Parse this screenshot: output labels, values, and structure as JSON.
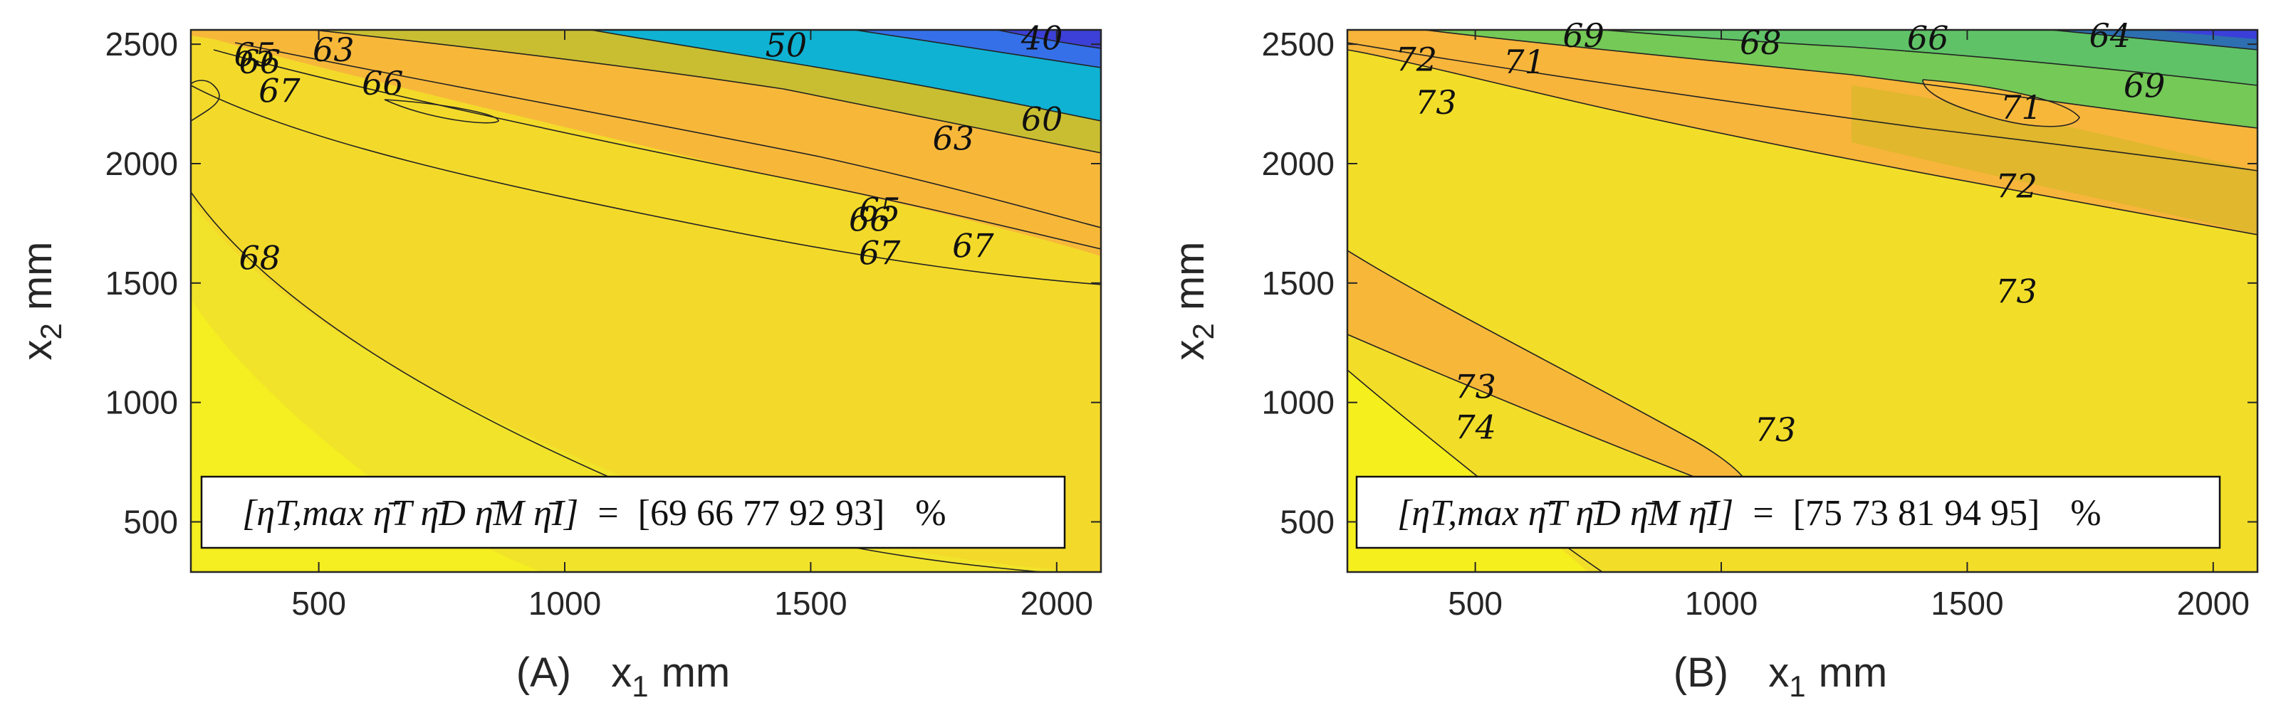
{
  "chart_data": [
    {
      "type": "contour",
      "panel_label": "(A)",
      "xlabel_base": "x",
      "xlabel_sub": "1",
      "xlabel_unit": "mm",
      "ylabel_base": "x",
      "ylabel_sub": "2",
      "ylabel_unit": "mm",
      "xlim": [
        240,
        2090
      ],
      "ylim": [
        290,
        2560
      ],
      "xticks": [
        500,
        1000,
        1500,
        2000
      ],
      "yticks": [
        500,
        1000,
        1500,
        2000,
        2500
      ],
      "contour_levels": [
        "40",
        "50",
        "60",
        "63",
        "65",
        "66",
        "67",
        "68"
      ],
      "contour_labels": [
        {
          "text": "65",
          "x": 370,
          "y": 2450
        },
        {
          "text": "66",
          "x": 380,
          "y": 2420
        },
        {
          "text": "63",
          "x": 530,
          "y": 2470
        },
        {
          "text": "67",
          "x": 420,
          "y": 2300
        },
        {
          "text": "66",
          "x": 630,
          "y": 2330
        },
        {
          "text": "50",
          "x": 1450,
          "y": 2490
        },
        {
          "text": "40",
          "x": 1970,
          "y": 2520
        },
        {
          "text": "60",
          "x": 1970,
          "y": 2180
        },
        {
          "text": "63",
          "x": 1790,
          "y": 2100
        },
        {
          "text": "65",
          "x": 1640,
          "y": 1800
        },
        {
          "text": "66",
          "x": 1620,
          "y": 1760
        },
        {
          "text": "67",
          "x": 1830,
          "y": 1650
        },
        {
          "text": "67",
          "x": 1640,
          "y": 1620
        },
        {
          "text": "68",
          "x": 380,
          "y": 1600
        }
      ],
      "annotation": {
        "lhs": "[ηT,max η̄T η̄D η̄M η̄I]",
        "eq": "=",
        "values": "[69 66 77 92 93]",
        "unit": "%"
      }
    },
    {
      "type": "contour",
      "panel_label": "(B)",
      "xlabel_base": "x",
      "xlabel_sub": "1",
      "xlabel_unit": "mm",
      "ylabel_base": "x",
      "ylabel_sub": "2",
      "ylabel_unit": "mm",
      "xlim": [
        240,
        2090
      ],
      "ylim": [
        290,
        2560
      ],
      "xticks": [
        500,
        1000,
        1500,
        2000
      ],
      "yticks": [
        500,
        1000,
        1500,
        2000,
        2500
      ],
      "contour_levels": [
        "64",
        "66",
        "68",
        "69",
        "71",
        "72",
        "73",
        "74"
      ],
      "contour_labels": [
        {
          "text": "69",
          "x": 720,
          "y": 2530
        },
        {
          "text": "68",
          "x": 1080,
          "y": 2500
        },
        {
          "text": "66",
          "x": 1420,
          "y": 2520
        },
        {
          "text": "64",
          "x": 1790,
          "y": 2530
        },
        {
          "text": "72",
          "x": 380,
          "y": 2430
        },
        {
          "text": "71",
          "x": 600,
          "y": 2420
        },
        {
          "text": "69",
          "x": 1860,
          "y": 2320
        },
        {
          "text": "73",
          "x": 420,
          "y": 2250
        },
        {
          "text": "71",
          "x": 1610,
          "y": 2230
        },
        {
          "text": "72",
          "x": 1600,
          "y": 1900
        },
        {
          "text": "73",
          "x": 1600,
          "y": 1460
        },
        {
          "text": "73",
          "x": 500,
          "y": 1060
        },
        {
          "text": "73",
          "x": 1110,
          "y": 880
        },
        {
          "text": "74",
          "x": 500,
          "y": 890
        }
      ],
      "annotation": {
        "lhs": "[ηT,max η̄T η̄D η̄M η̄I]",
        "eq": "=",
        "values": "[75 73 81 94 95]",
        "unit": "%"
      }
    }
  ],
  "colors": {
    "yellow_bright": "#f6f21c",
    "yellow": "#f1de27",
    "orange_light": "#fbc23a",
    "orange": "#f7b33c",
    "olive": "#c8bd2e",
    "gold_dark": "#e0b82e",
    "green_light": "#76c954",
    "green": "#5fc266",
    "teal": "#1aaccb",
    "cyan": "#0db7d8",
    "blue": "#3565ec",
    "indigo": "#3b3fd9"
  }
}
